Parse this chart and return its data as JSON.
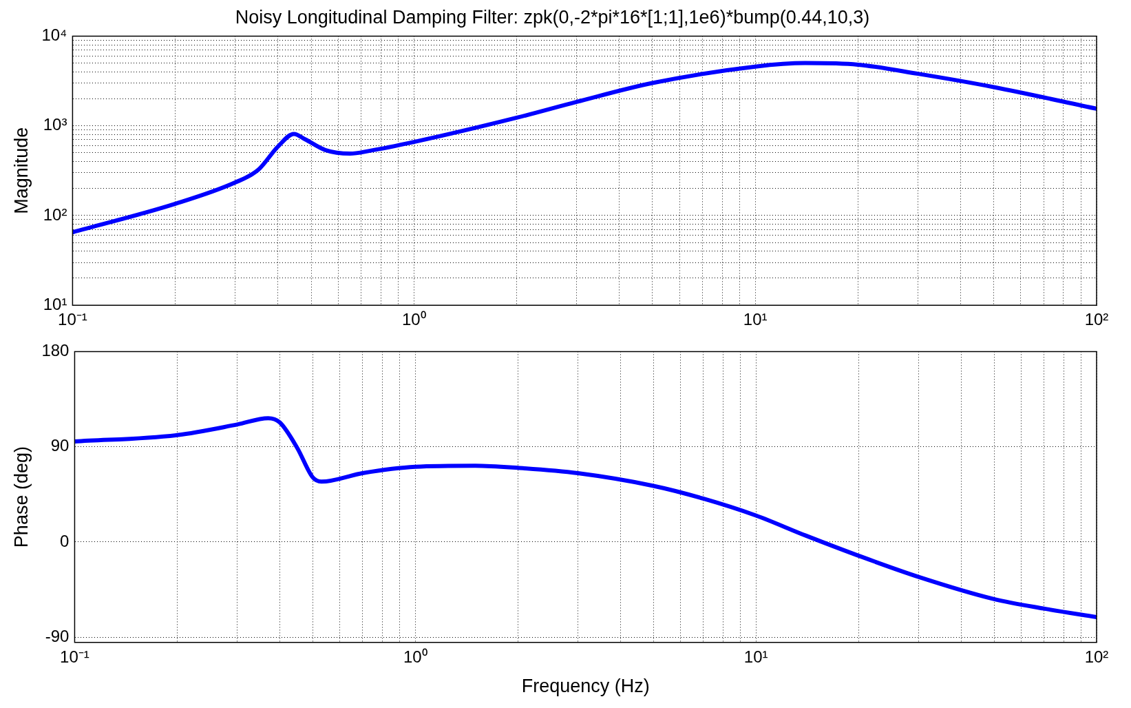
{
  "chart_data": [
    {
      "type": "line",
      "title": "Noisy Longitudinal Damping Filter: zpk(0,-2*pi*16*[1;1],1e6)*bump(0.44,10,3)",
      "ylabel": "Magnitude",
      "log": "xy",
      "grid": true,
      "color": "#0000ff",
      "x": [
        0.1,
        0.2,
        0.3,
        0.35,
        0.4,
        0.445,
        0.48,
        0.55,
        0.65,
        0.74,
        1,
        2,
        3,
        5,
        10,
        14,
        20,
        30,
        50,
        100
      ],
      "values": [
        65,
        135,
        234,
        323,
        589,
        813,
        708,
        537,
        490,
        525,
        660,
        1230,
        1850,
        3000,
        4570,
        5000,
        4800,
        3800,
        2700,
        1550
      ],
      "xlim": [
        0.1,
        100
      ],
      "ylim": [
        10,
        10000
      ],
      "xticks": [
        {
          "value": 0.1,
          "label": "10⁻¹"
        },
        {
          "value": 0.2,
          "label": null
        },
        {
          "value": 0.3,
          "label": null
        },
        {
          "value": 0.4,
          "label": null
        },
        {
          "value": 0.5,
          "label": null
        },
        {
          "value": 0.6,
          "label": null
        },
        {
          "value": 0.7,
          "label": null
        },
        {
          "value": 0.8,
          "label": null
        },
        {
          "value": 0.9,
          "label": null
        },
        {
          "value": 1,
          "label": "10⁰"
        },
        {
          "value": 2,
          "label": null
        },
        {
          "value": 3,
          "label": null
        },
        {
          "value": 4,
          "label": null
        },
        {
          "value": 5,
          "label": null
        },
        {
          "value": 6,
          "label": null
        },
        {
          "value": 7,
          "label": null
        },
        {
          "value": 8,
          "label": null
        },
        {
          "value": 9,
          "label": null
        },
        {
          "value": 10,
          "label": "10¹"
        },
        {
          "value": 20,
          "label": null
        },
        {
          "value": 30,
          "label": null
        },
        {
          "value": 40,
          "label": null
        },
        {
          "value": 50,
          "label": null
        },
        {
          "value": 60,
          "label": null
        },
        {
          "value": 70,
          "label": null
        },
        {
          "value": 80,
          "label": null
        },
        {
          "value": 90,
          "label": null
        },
        {
          "value": 100,
          "label": "10²"
        }
      ],
      "yticks": [
        {
          "value": 10,
          "label": "10¹"
        },
        {
          "value": 20,
          "label": null
        },
        {
          "value": 30,
          "label": null
        },
        {
          "value": 40,
          "label": null
        },
        {
          "value": 50,
          "label": null
        },
        {
          "value": 60,
          "label": null
        },
        {
          "value": 70,
          "label": null
        },
        {
          "value": 80,
          "label": null
        },
        {
          "value": 90,
          "label": null
        },
        {
          "value": 100,
          "label": "10²"
        },
        {
          "value": 200,
          "label": null
        },
        {
          "value": 300,
          "label": null
        },
        {
          "value": 400,
          "label": null
        },
        {
          "value": 500,
          "label": null
        },
        {
          "value": 600,
          "label": null
        },
        {
          "value": 700,
          "label": null
        },
        {
          "value": 800,
          "label": null
        },
        {
          "value": 900,
          "label": null
        },
        {
          "value": 1000,
          "label": "10³"
        },
        {
          "value": 2000,
          "label": null
        },
        {
          "value": 3000,
          "label": null
        },
        {
          "value": 4000,
          "label": null
        },
        {
          "value": 5000,
          "label": null
        },
        {
          "value": 6000,
          "label": null
        },
        {
          "value": 7000,
          "label": null
        },
        {
          "value": 8000,
          "label": null
        },
        {
          "value": 9000,
          "label": null
        },
        {
          "value": 10000,
          "label": "10⁴"
        }
      ]
    },
    {
      "type": "line",
      "xlabel": "Frequency (Hz)",
      "ylabel": "Phase (deg)",
      "log": "x",
      "grid": true,
      "color": "#0000ff",
      "x": [
        0.1,
        0.2,
        0.3,
        0.37,
        0.4,
        0.45,
        0.5,
        0.53,
        0.7,
        1,
        1.5,
        2,
        3,
        5,
        7,
        10,
        14,
        20,
        30,
        50,
        70,
        100
      ],
      "values": [
        95,
        101,
        111,
        117,
        113,
        89,
        61,
        57,
        65,
        71,
        72,
        70,
        65,
        53,
        41,
        25,
        6,
        -13,
        -33,
        -54,
        -63,
        -71
      ],
      "xlim": [
        0.1,
        100
      ],
      "ylim": [
        -95,
        180
      ],
      "xticks": [
        {
          "value": 0.1,
          "label": "10⁻¹"
        },
        {
          "value": 0.2,
          "label": null
        },
        {
          "value": 0.3,
          "label": null
        },
        {
          "value": 0.4,
          "label": null
        },
        {
          "value": 0.5,
          "label": null
        },
        {
          "value": 0.6,
          "label": null
        },
        {
          "value": 0.7,
          "label": null
        },
        {
          "value": 0.8,
          "label": null
        },
        {
          "value": 0.9,
          "label": null
        },
        {
          "value": 1,
          "label": "10⁰"
        },
        {
          "value": 2,
          "label": null
        },
        {
          "value": 3,
          "label": null
        },
        {
          "value": 4,
          "label": null
        },
        {
          "value": 5,
          "label": null
        },
        {
          "value": 6,
          "label": null
        },
        {
          "value": 7,
          "label": null
        },
        {
          "value": 8,
          "label": null
        },
        {
          "value": 9,
          "label": null
        },
        {
          "value": 10,
          "label": "10¹"
        },
        {
          "value": 20,
          "label": null
        },
        {
          "value": 30,
          "label": null
        },
        {
          "value": 40,
          "label": null
        },
        {
          "value": 50,
          "label": null
        },
        {
          "value": 60,
          "label": null
        },
        {
          "value": 70,
          "label": null
        },
        {
          "value": 80,
          "label": null
        },
        {
          "value": 90,
          "label": null
        },
        {
          "value": 100,
          "label": "10²"
        }
      ],
      "yticks": [
        -90,
        0,
        90,
        180
      ]
    }
  ]
}
